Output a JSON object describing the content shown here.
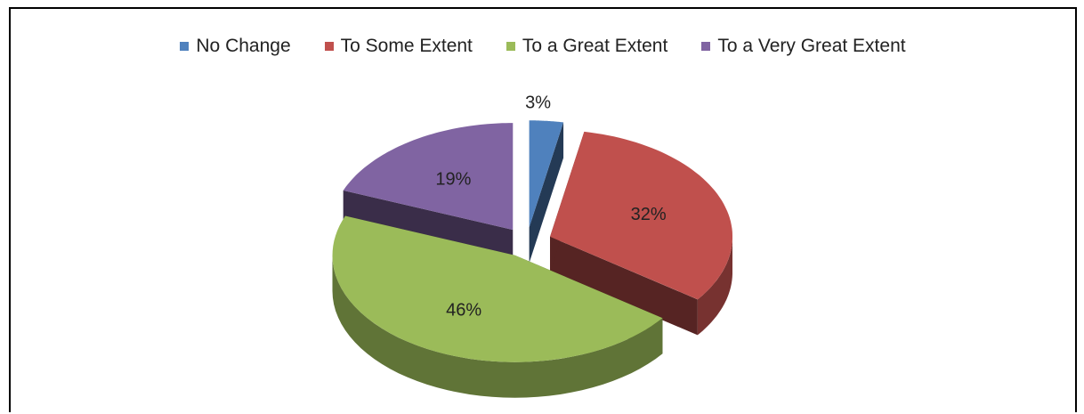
{
  "chart_data": {
    "type": "pie",
    "categories": [
      "No Change",
      "To Some Extent",
      "To a Great Extent",
      "To a Very Great Extent"
    ],
    "values": [
      3,
      32,
      46,
      19
    ],
    "labels": [
      "3%",
      "32%",
      "46%",
      "19%"
    ],
    "colors": [
      "#4f81bd",
      "#c0504d",
      "#9bbb59",
      "#8064a2"
    ],
    "legend_position": "top",
    "exploded": true,
    "style": "3d"
  }
}
